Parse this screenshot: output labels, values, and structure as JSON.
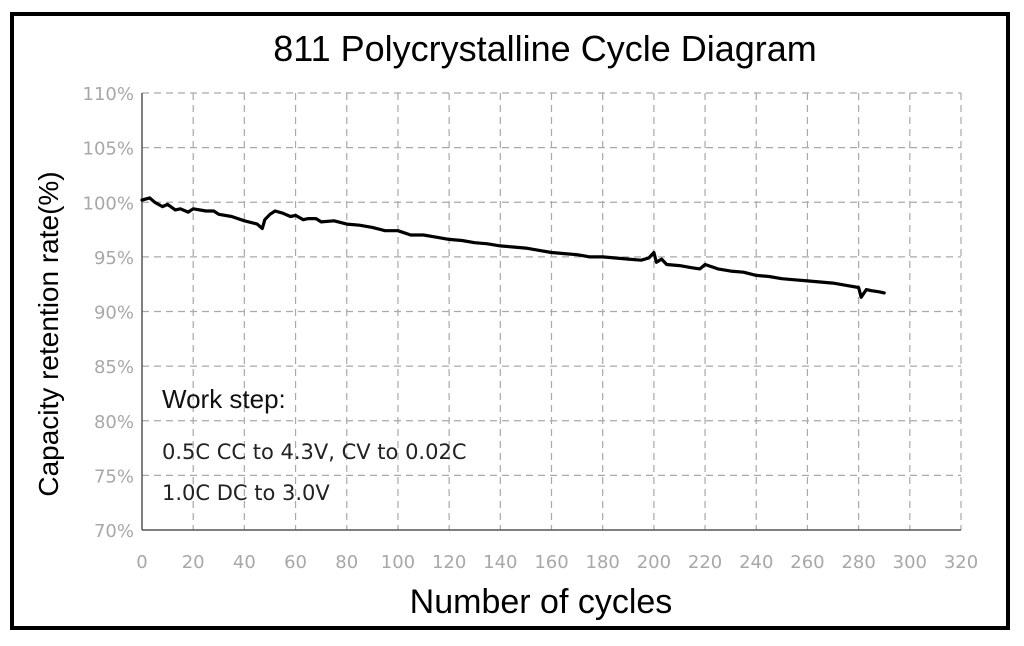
{
  "chart_data": {
    "type": "line",
    "title": "811 Polycrystalline Cycle Diagram",
    "xlabel": "Number of cycles",
    "ylabel": "Capacity retention rate(%)",
    "xlim": [
      0,
      320
    ],
    "ylim": [
      70,
      110
    ],
    "x_ticks": [
      0,
      20,
      40,
      60,
      80,
      100,
      120,
      140,
      160,
      180,
      200,
      220,
      240,
      260,
      280,
      300,
      320
    ],
    "x_tick_labels": [
      "0",
      "20",
      "40",
      "60",
      "80",
      "100",
      "120",
      "140",
      "160",
      "180",
      "200",
      "220",
      "240",
      "260",
      "280",
      "300",
      "320"
    ],
    "y_ticks": [
      70,
      75,
      80,
      85,
      90,
      95,
      100,
      105,
      110
    ],
    "y_tick_labels": [
      "70%",
      "75%",
      "80%",
      "85%",
      "90%",
      "95%",
      "100%",
      "105%",
      "110%"
    ],
    "grid": true,
    "series": [
      {
        "name": "811 Polycrystalline",
        "color": "#000000",
        "x": [
          0,
          3,
          5,
          8,
          10,
          13,
          15,
          18,
          20,
          25,
          28,
          30,
          35,
          40,
          45,
          47,
          48,
          50,
          52,
          55,
          58,
          60,
          63,
          65,
          68,
          70,
          75,
          80,
          85,
          90,
          95,
          100,
          105,
          110,
          115,
          120,
          125,
          130,
          135,
          140,
          145,
          150,
          155,
          160,
          165,
          170,
          175,
          180,
          185,
          190,
          195,
          198,
          200,
          201,
          203,
          205,
          210,
          215,
          218,
          220,
          225,
          230,
          235,
          240,
          245,
          250,
          255,
          260,
          265,
          270,
          275,
          280,
          281,
          283,
          285,
          288,
          290
        ],
        "y": [
          100.2,
          100.4,
          100.0,
          99.6,
          99.8,
          99.3,
          99.4,
          99.1,
          99.4,
          99.2,
          99.2,
          98.9,
          98.7,
          98.3,
          98.0,
          97.6,
          98.4,
          98.9,
          99.2,
          99.0,
          98.7,
          98.8,
          98.4,
          98.5,
          98.5,
          98.2,
          98.3,
          98.0,
          97.9,
          97.7,
          97.4,
          97.4,
          97.0,
          97.0,
          96.8,
          96.6,
          96.5,
          96.3,
          96.2,
          96.0,
          95.9,
          95.8,
          95.6,
          95.4,
          95.3,
          95.2,
          95.0,
          95.0,
          94.9,
          94.8,
          94.7,
          94.9,
          95.4,
          94.5,
          94.8,
          94.3,
          94.2,
          94.0,
          93.9,
          94.3,
          93.9,
          93.7,
          93.6,
          93.3,
          93.2,
          93.0,
          92.9,
          92.8,
          92.7,
          92.6,
          92.4,
          92.2,
          91.3,
          92.0,
          91.9,
          91.8,
          91.7
        ]
      }
    ],
    "annotations": {
      "heading": "Work step:",
      "lines": [
        "0.5C CC to 4.3V, CV to 0.02C",
        "1.0C DC to 3.0V"
      ]
    }
  }
}
